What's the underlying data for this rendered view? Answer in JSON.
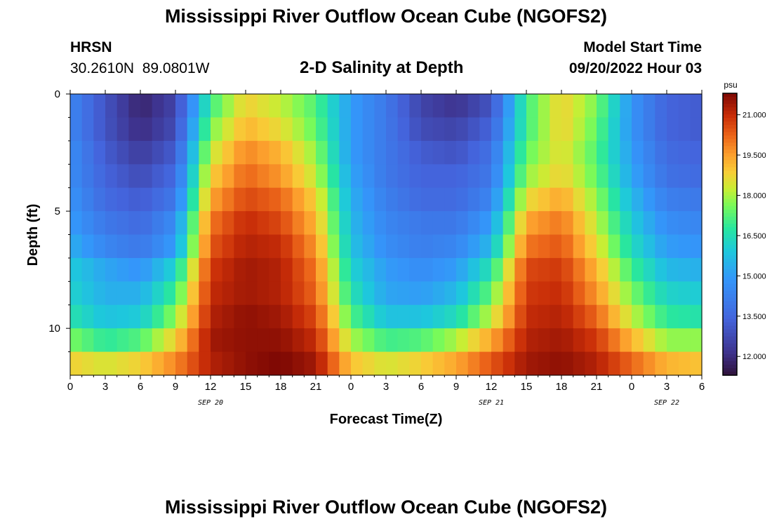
{
  "page": {
    "title": "Mississippi River Outflow Ocean Cube (NGOFS2)",
    "station_code": "HRSN",
    "station_coords": "30.2610N  89.0801W",
    "subtitle": "2-D Salinity at Depth",
    "model_start_label": "Model Start Time",
    "model_start_value": "09/20/2022 Hour 03",
    "footer_title": "Mississippi River Outflow Ocean Cube (NGOFS2)"
  },
  "chart_data": {
    "type": "heatmap",
    "title": "2-D Salinity at Depth",
    "xlabel": "Forecast Time(Z)",
    "ylabel": "Depth (ft)",
    "x_ticks": [
      "0",
      "3",
      "6",
      "9",
      "12",
      "15",
      "18",
      "21",
      "0",
      "3",
      "6",
      "9",
      "12",
      "15",
      "18",
      "21",
      "0",
      "3",
      "6"
    ],
    "x_range_hours": [
      0,
      54
    ],
    "y_ticks": [
      0,
      5,
      10
    ],
    "y_range_ft": [
      0,
      12
    ],
    "date_labels": [
      {
        "label": "SEP 20",
        "hour": 12
      },
      {
        "label": "SEP 21",
        "hour": 36
      },
      {
        "label": "SEP 22",
        "hour": 51
      }
    ],
    "colorbar": {
      "unit": "psu",
      "tick_labels": [
        "21.000",
        "19.500",
        "18.000",
        "16.500",
        "15.000",
        "13.500",
        "12.000"
      ],
      "tick_values": [
        21.0,
        19.5,
        18.0,
        16.5,
        15.0,
        13.5,
        12.0
      ],
      "range": [
        11.3,
        21.8
      ]
    },
    "depth_levels": [
      0.5,
      1.5,
      2.5,
      3.5,
      4.5,
      5.5,
      6.5,
      7.5,
      8.5,
      9.5,
      10.5,
      11.5
    ],
    "hours": [
      0,
      3,
      6,
      9,
      12,
      15,
      18,
      21,
      24,
      27,
      30,
      33,
      36,
      39,
      42,
      45,
      48,
      51,
      54
    ],
    "salinity_psu": [
      [
        14.4,
        13.0,
        11.8,
        12.6,
        17.0,
        18.8,
        18.2,
        17.2,
        15.0,
        14.0,
        12.6,
        12.2,
        13.0,
        17.0,
        18.8,
        17.6,
        14.8,
        13.4,
        13.2
      ],
      [
        14.4,
        13.0,
        12.0,
        12.8,
        17.6,
        19.2,
        18.6,
        17.4,
        15.0,
        14.0,
        12.8,
        12.6,
        13.4,
        17.0,
        18.8,
        17.4,
        14.8,
        13.4,
        13.2
      ],
      [
        14.6,
        13.2,
        12.4,
        13.2,
        18.2,
        19.8,
        19.2,
        17.8,
        15.0,
        14.0,
        13.2,
        13.0,
        13.8,
        17.4,
        18.6,
        17.2,
        15.0,
        13.6,
        13.4
      ],
      [
        14.6,
        13.4,
        12.8,
        13.6,
        18.8,
        20.2,
        19.6,
        18.2,
        15.2,
        14.0,
        13.4,
        13.4,
        14.0,
        17.8,
        18.8,
        17.4,
        15.2,
        13.8,
        13.6
      ],
      [
        14.8,
        13.6,
        13.2,
        14.0,
        19.4,
        20.6,
        20.2,
        18.8,
        15.4,
        14.2,
        13.6,
        13.6,
        14.4,
        18.6,
        19.4,
        17.8,
        15.6,
        14.2,
        14.0
      ],
      [
        15.0,
        14.0,
        13.6,
        14.6,
        20.0,
        21.0,
        20.6,
        19.2,
        15.6,
        14.4,
        14.0,
        14.0,
        15.0,
        19.4,
        20.0,
        18.2,
        16.0,
        14.6,
        14.4
      ],
      [
        15.4,
        14.4,
        14.0,
        15.0,
        20.4,
        21.2,
        21.0,
        19.6,
        15.8,
        14.6,
        14.2,
        14.4,
        15.6,
        20.0,
        20.4,
        18.6,
        16.4,
        15.0,
        14.8
      ],
      [
        16.0,
        15.2,
        14.8,
        16.2,
        20.8,
        21.4,
        21.2,
        20.0,
        16.2,
        15.0,
        14.6,
        15.0,
        16.6,
        20.6,
        20.8,
        19.2,
        17.0,
        15.6,
        15.4
      ],
      [
        16.2,
        15.4,
        15.4,
        17.0,
        21.0,
        21.4,
        21.2,
        20.2,
        16.6,
        15.2,
        15.0,
        15.6,
        17.4,
        20.8,
        21.0,
        19.6,
        17.6,
        16.2,
        16.0
      ],
      [
        16.6,
        15.8,
        16.0,
        17.8,
        21.2,
        21.6,
        21.4,
        20.6,
        17.2,
        15.8,
        15.8,
        16.4,
        18.2,
        21.0,
        21.2,
        20.2,
        18.2,
        16.8,
        16.6
      ],
      [
        17.6,
        16.8,
        17.2,
        18.8,
        21.4,
        21.6,
        21.6,
        21.0,
        18.0,
        17.0,
        17.2,
        18.0,
        19.4,
        21.2,
        21.4,
        20.8,
        19.2,
        17.8,
        17.8
      ],
      [
        18.8,
        18.4,
        18.8,
        19.8,
        21.2,
        21.6,
        21.8,
        21.4,
        19.0,
        18.4,
        18.8,
        19.4,
        20.4,
        21.4,
        21.6,
        21.2,
        20.2,
        19.2,
        19.0
      ]
    ]
  }
}
